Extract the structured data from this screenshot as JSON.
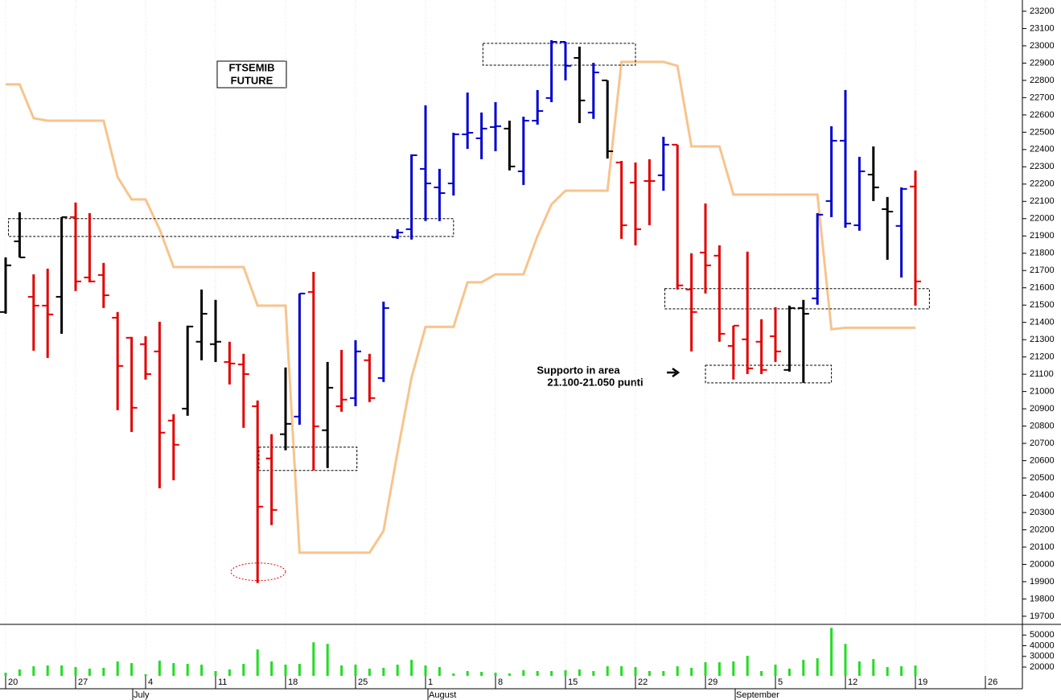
{
  "chart_data": [
    {
      "type": "ohlc",
      "categories": [
        "20",
        null,
        null,
        null,
        null,
        "27",
        null,
        null,
        null,
        null,
        "4",
        null,
        null,
        null,
        null,
        "11",
        null,
        null,
        null,
        null,
        "18",
        null,
        null,
        null,
        null,
        "25",
        null,
        null,
        null,
        null,
        "1",
        null,
        null,
        null,
        null,
        "8",
        null,
        null,
        null,
        null,
        "15",
        null,
        null,
        null,
        null,
        "22",
        null,
        null,
        null,
        null,
        "29",
        null,
        null,
        null,
        null,
        "5",
        null,
        null,
        null,
        null,
        "12",
        null,
        null,
        null,
        null,
        "19",
        null,
        null,
        null,
        null,
        "26"
      ],
      "months": [
        "July",
        "August",
        "September"
      ],
      "open": [
        21460,
        21869,
        21548,
        21497,
        21548,
        22009,
        21660,
        21674,
        21427,
        21311,
        21274,
        21232,
        20832,
        20901,
        21288,
        21274,
        21171,
        21157,
        20915,
        20613,
        20753,
        20855,
        21576,
        20776,
        20915,
        20962,
        21181,
        21078,
        21892,
        21939,
        22288,
        22181,
        22204,
        22488,
        22465,
        22530,
        22521,
        22274,
        22567,
        22698,
        23023,
        22930,
        22614,
        22800,
        22325,
        22209,
        22218,
        22251,
        22428,
        21590,
        21804,
        21786,
        21264,
        21302,
        21288,
        21320,
        21125,
        21483,
        21539,
        22102,
        22451,
        21962,
        22255,
        22055,
        21958,
        22186,
        null,
        null,
        null,
        null,
        null
      ],
      "high": [
        21776,
        22037,
        21678,
        21711,
        22009,
        22093,
        22032,
        21744,
        21460,
        21316,
        21320,
        21404,
        20869,
        21381,
        21590,
        21530,
        21288,
        21218,
        20948,
        20753,
        21139,
        21567,
        21692,
        21171,
        21241,
        21297,
        21218,
        21520,
        21939,
        22372,
        22656,
        22288,
        22497,
        22730,
        22614,
        22674,
        22567,
        22590,
        22744,
        23032,
        23023,
        22995,
        22902,
        22800,
        22334,
        22325,
        22344,
        22474,
        22428,
        21800,
        22088,
        21846,
        21381,
        21809,
        21418,
        21488,
        21497,
        21530,
        22032,
        22535,
        22744,
        22358,
        22418,
        22125,
        22181,
        22279,
        null,
        null,
        null,
        null,
        null
      ],
      "low": [
        21450,
        21776,
        21236,
        21194,
        21334,
        21581,
        21632,
        21483,
        20892,
        20766,
        21069,
        20441,
        20487,
        20860,
        21181,
        21171,
        21041,
        20790,
        19892,
        20227,
        20660,
        20808,
        20543,
        20557,
        20883,
        20915,
        20939,
        21055,
        21883,
        21879,
        21986,
        21986,
        22134,
        22404,
        22344,
        22390,
        22279,
        22195,
        22544,
        22674,
        22800,
        22553,
        22577,
        22348,
        21883,
        21846,
        21962,
        22162,
        21590,
        21232,
        21567,
        21288,
        21069,
        21101,
        21101,
        21171,
        21115,
        21050,
        21502,
        22009,
        21948,
        21930,
        22102,
        21762,
        21660,
        21497,
        null,
        null,
        null,
        null,
        null
      ],
      "close": [
        21730,
        21776,
        21497,
        21446,
        22009,
        21637,
        21637,
        21557,
        21148,
        20906,
        21101,
        20762,
        20692,
        21376,
        21450,
        21288,
        21162,
        21101,
        20334,
        20315,
        20813,
        21567,
        20799,
        21022,
        20953,
        21232,
        20962,
        21483,
        21920,
        22367,
        22204,
        22148,
        22488,
        22497,
        22521,
        22535,
        22302,
        22567,
        22623,
        23023,
        22884,
        22684,
        22846,
        22390,
        21962,
        21939,
        22218,
        22428,
        21614,
        21460,
        21730,
        21334,
        21381,
        21134,
        21125,
        21232,
        21483,
        21450,
        22023,
        22451,
        21972,
        22274,
        22181,
        22041,
        22172,
        21637,
        null,
        null,
        null,
        null,
        null
      ],
      "bar_colors": [
        "#000000",
        "#000000",
        "#e00000",
        "#e00000",
        "#000000",
        "#e00000",
        "#e00000",
        "#e00000",
        "#e00000",
        "#e00000",
        "#e00000",
        "#e00000",
        "#e00000",
        "#000000",
        "#000000",
        "#000000",
        "#e00000",
        "#e00000",
        "#e00000",
        "#e00000",
        "#000000",
        "#0000cc",
        "#e00000",
        "#000000",
        "#e00000",
        "#0000cc",
        "#e00000",
        "#0000cc",
        "#0000cc",
        "#0000cc",
        "#0000cc",
        "#0000cc",
        "#0000cc",
        "#0000cc",
        "#0000cc",
        "#0000cc",
        "#000000",
        "#0000cc",
        "#0000cc",
        "#0000cc",
        "#0000cc",
        "#000000",
        "#0000cc",
        "#000000",
        "#e00000",
        "#e00000",
        "#e00000",
        "#0000cc",
        "#e00000",
        "#e00000",
        "#e00000",
        "#e00000",
        "#e00000",
        "#e00000",
        "#e00000",
        "#e00000",
        "#000000",
        "#000000",
        "#0000cc",
        "#0000cc",
        "#0000cc",
        "#0000cc",
        "#000000",
        "#000000",
        "#0000cc",
        "#e00000",
        null,
        null,
        null,
        null,
        null
      ],
      "overlay": {
        "color": "#f7c48c",
        "values": [
          22777,
          22777,
          22581,
          22567,
          22567,
          22567,
          22567,
          22567,
          22241,
          22111,
          22111,
          21939,
          21720,
          21720,
          21720,
          21720,
          21720,
          21720,
          21497,
          21497,
          21497,
          20068,
          20068,
          20068,
          20068,
          20068,
          20068,
          20194,
          20650,
          21081,
          21374,
          21374,
          21374,
          21632,
          21632,
          21678,
          21678,
          21678,
          21900,
          22083,
          22162,
          22162,
          22162,
          22162,
          22907,
          22907,
          22907,
          22907,
          22884,
          22418,
          22418,
          22418,
          22139,
          22139,
          22139,
          22139,
          22139,
          22139,
          22139,
          21360,
          21369,
          21369,
          21369,
          21369,
          21369,
          21369,
          null,
          null,
          null,
          null,
          null
        ]
      },
      "zones": [
        {
          "start": 0.2,
          "end": 32,
          "low": 21897,
          "high": 22000
        },
        {
          "start": 34.1,
          "end": 45,
          "low": 22888,
          "high": 23014
        },
        {
          "start": 47.1,
          "end": 66,
          "low": 21478,
          "high": 21595
        },
        {
          "start": 50,
          "end": 59,
          "low": 21050,
          "high": 21152
        },
        {
          "start": 18.1,
          "end": 25.1,
          "low": 20543,
          "high": 20678
        }
      ],
      "low_marker": {
        "start": 16.1,
        "end": 20,
        "low": 19906,
        "high": 20008
      },
      "title": [
        "FTSEMIB",
        "FUTURE"
      ],
      "annotation": [
        "Supporto in area",
        "21.100-21.050 punti"
      ],
      "ylim": [
        19653,
        23265
      ],
      "yticks": [
        19700,
        19800,
        19900,
        20000,
        20100,
        20200,
        20300,
        20400,
        20500,
        20600,
        20700,
        20800,
        20900,
        21000,
        21100,
        21200,
        21300,
        21400,
        21500,
        21600,
        21700,
        21800,
        21900,
        22000,
        22100,
        22200,
        22300,
        22400,
        22500,
        22600,
        22700,
        22800,
        22900,
        23000,
        23100,
        23200
      ]
    },
    {
      "type": "bar",
      "values": [
        14750,
        17750,
        20750,
        21500,
        21500,
        20000,
        18500,
        19250,
        25250,
        23750,
        13250,
        26000,
        23750,
        23000,
        22250,
        16250,
        17750,
        23000,
        36500,
        25250,
        22250,
        23000,
        43250,
        41750,
        21500,
        22250,
        18500,
        19250,
        22250,
        26750,
        21500,
        20000,
        14000,
        16250,
        15500,
        14750,
        14000,
        17000,
        16250,
        16250,
        17000,
        17750,
        16250,
        20750,
        20750,
        20000,
        16250,
        16250,
        20750,
        19250,
        24500,
        24500,
        25250,
        30500,
        16250,
        22250,
        18500,
        26750,
        28250,
        56750,
        41750,
        25250,
        27500,
        20000,
        20750,
        21500,
        null,
        null,
        null,
        null,
        null
      ],
      "color": "#22dd22",
      "ylim": [
        11750,
        60000
      ],
      "yticks": [
        20000,
        30000,
        40000,
        50000
      ]
    }
  ]
}
